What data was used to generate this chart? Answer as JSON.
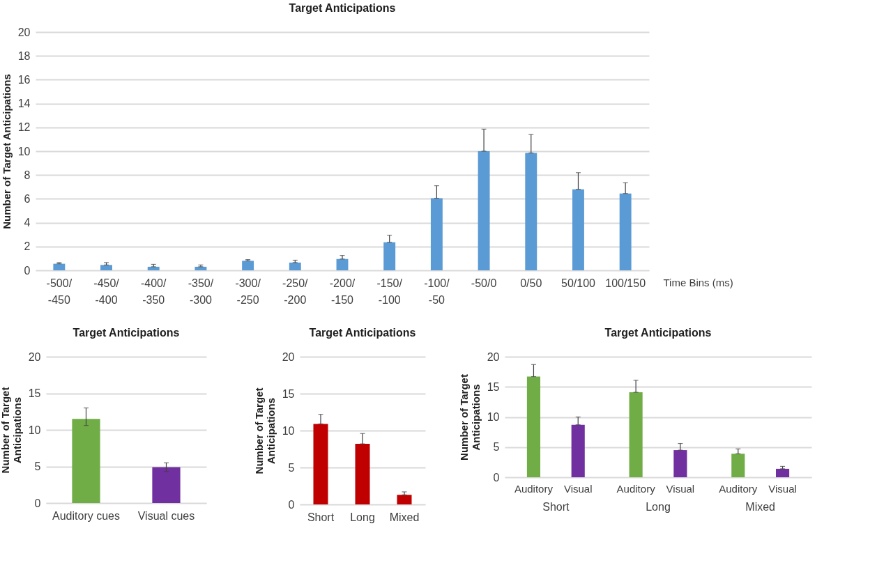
{
  "chart_data": [
    {
      "type": "bar",
      "title": "Target Anticipations",
      "xlabel": "Time Bins (ms)",
      "ylabel": "Number of Target Anticipations",
      "categories": [
        "-500/-450",
        "-450/-400",
        "-400/-350",
        "-350/-300",
        "-300/-250",
        "-250/-200",
        "-200/-150",
        "-150/-100",
        "-100/-50",
        "-50/0",
        "0/50",
        "50/100",
        "100/150"
      ],
      "values": [
        0.55,
        0.45,
        0.3,
        0.3,
        0.8,
        0.65,
        0.95,
        2.35,
        6.05,
        10,
        9.85,
        6.8,
        6.45
      ],
      "errors": [
        [
          0.55,
          0.65
        ],
        [
          0.45,
          0.65
        ],
        [
          0.3,
          0.5
        ],
        [
          0.3,
          0.45
        ],
        [
          0.8,
          0.9
        ],
        [
          0.65,
          0.85
        ],
        [
          0.95,
          1.25
        ],
        [
          2.35,
          2.95
        ],
        [
          6.05,
          7.1
        ],
        [
          10,
          11.85
        ],
        [
          9.85,
          11.4
        ],
        [
          6.8,
          8.2
        ],
        [
          6.45,
          7.35
        ]
      ],
      "color": "#5b9bd5",
      "ylim": [
        0,
        20
      ],
      "yticks": [
        0,
        2,
        4,
        6,
        8,
        10,
        12,
        14,
        16,
        18,
        20
      ],
      "grid": "y"
    },
    {
      "type": "bar",
      "title": "Target Anticipations",
      "ylabel": "Number of Target Anticipations",
      "categories": [
        "Auditory cues",
        "Visual cues"
      ],
      "values": [
        11.5,
        4.9
      ],
      "errors": [
        [
          10.6,
          13.0
        ],
        [
          4.3,
          5.5
        ]
      ],
      "colors": [
        "#70ad47",
        "#7030a0"
      ],
      "ylim": [
        0,
        20
      ],
      "yticks": [
        0,
        5,
        10,
        15,
        20
      ],
      "grid": "y"
    },
    {
      "type": "bar",
      "title": "Target Anticipations",
      "ylabel": "Number of Target Anticipations",
      "categories": [
        "Short",
        "Long",
        "Mixed"
      ],
      "values": [
        10.9,
        8.2,
        1.3
      ],
      "errors": [
        [
          10.9,
          12.2
        ],
        [
          8.2,
          9.6
        ],
        [
          1.3,
          1.7
        ]
      ],
      "colors": [
        "#c00000",
        "#c00000",
        "#c00000"
      ],
      "ylim": [
        0,
        20
      ],
      "yticks": [
        0,
        5,
        10,
        15,
        20
      ],
      "grid": "y"
    },
    {
      "type": "bar",
      "title": "Target Anticipations",
      "ylabel": "Number of Target Anticipations",
      "categories": [
        "Short",
        "Long",
        "Mixed"
      ],
      "series": [
        {
          "name": "Auditory",
          "color": "#70ad47",
          "values": [
            16.7,
            14.1,
            3.9
          ],
          "errors": [
            [
              16.7,
              18.7
            ],
            [
              14.1,
              16.1
            ],
            [
              3.9,
              4.7
            ]
          ]
        },
        {
          "name": "Visual",
          "color": "#7030a0",
          "values": [
            8.7,
            4.5,
            1.4
          ],
          "errors": [
            [
              8.7,
              10.0
            ],
            [
              4.5,
              5.6
            ],
            [
              1.4,
              1.8
            ]
          ]
        }
      ],
      "ylim": [
        0,
        20
      ],
      "yticks": [
        0,
        5,
        10,
        15,
        20
      ],
      "grid": "y"
    }
  ]
}
